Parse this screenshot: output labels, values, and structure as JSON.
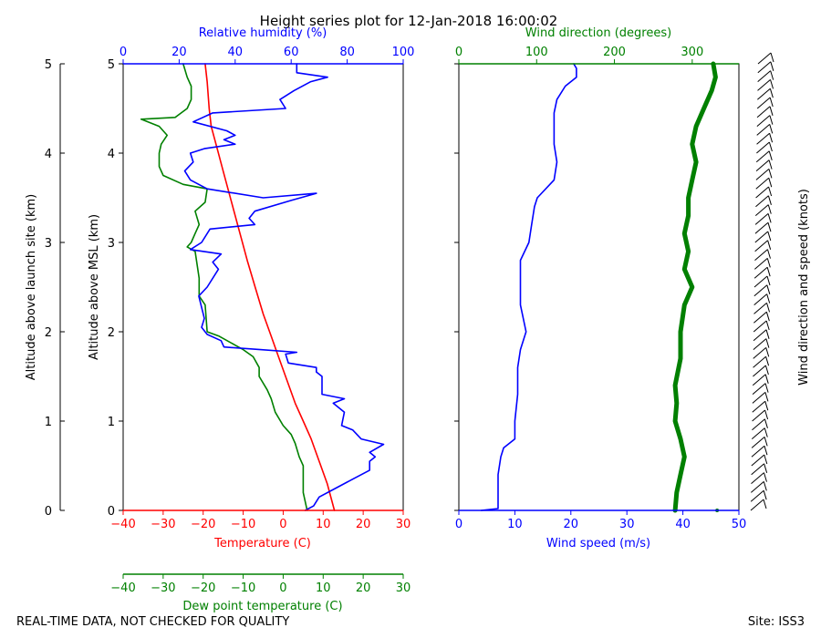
{
  "chart_data": {
    "type": "line",
    "title": "Height series plot for 12-Jan-2018 16:00:02",
    "footer_left": "REAL-TIME DATA, NOT CHECKED FOR QUALITY",
    "footer_right": "Site: ISS3",
    "colors": {
      "temperature": "#ff0000",
      "dewpoint": "#008000",
      "humidity": "#0000ff",
      "wind_speed": "#0000ff",
      "wind_direction": "#008000",
      "barbs": "#000000"
    },
    "axes": {
      "launch_alt": {
        "label": "Altitude above launch site (km)",
        "range": [
          0,
          5
        ],
        "ticks": [
          "0",
          "1",
          "2",
          "3",
          "4",
          "5"
        ]
      },
      "msl_alt": {
        "label": "Altitude above MSL (km)",
        "range": [
          0,
          5
        ],
        "ticks": [
          "0",
          "1",
          "2",
          "3",
          "4",
          "5"
        ]
      },
      "temperature": {
        "label": "Temperature (C)",
        "range": [
          -40,
          30
        ],
        "ticks": [
          "−40",
          "−30",
          "−20",
          "−10",
          "0",
          "10",
          "20",
          "30"
        ]
      },
      "dewpoint": {
        "label": "Dew point temperature (C)",
        "range": [
          -40,
          30
        ],
        "ticks": [
          "−40",
          "−30",
          "−20",
          "−10",
          "0",
          "10",
          "20",
          "30"
        ]
      },
      "humidity": {
        "label": "Relative humidity (%)",
        "range": [
          0,
          100
        ],
        "ticks": [
          "0",
          "20",
          "40",
          "60",
          "80",
          "100"
        ]
      },
      "wind_speed": {
        "label": "Wind speed (m/s)",
        "range": [
          0,
          50
        ],
        "ticks": [
          "0",
          "10",
          "20",
          "30",
          "40",
          "50"
        ]
      },
      "wind_direction": {
        "label": "Wind direction (degrees)",
        "range": [
          0,
          360
        ],
        "ticks": [
          "0",
          "100",
          "200",
          "300"
        ]
      },
      "barbs": {
        "label": "Wind direction and speed (knots)"
      }
    },
    "series": [
      {
        "name": "Temperature",
        "axis": "temperature",
        "color": "#ff0000",
        "width": 1.6,
        "points": [
          [
            12.8,
            0
          ],
          [
            11,
            0.3
          ],
          [
            9,
            0.55
          ],
          [
            7,
            0.8
          ],
          [
            5,
            1.0
          ],
          [
            3,
            1.2
          ],
          [
            1,
            1.45
          ],
          [
            -1,
            1.7
          ],
          [
            -3,
            1.95
          ],
          [
            -5,
            2.2
          ],
          [
            -7,
            2.5
          ],
          [
            -9,
            2.8
          ],
          [
            -10.5,
            3.05
          ],
          [
            -12,
            3.3
          ],
          [
            -13.5,
            3.55
          ],
          [
            -15,
            3.8
          ],
          [
            -16.5,
            4.05
          ],
          [
            -18,
            4.3
          ],
          [
            -18.5,
            4.5
          ],
          [
            -19,
            4.8
          ],
          [
            -19.5,
            5.0
          ]
        ]
      },
      {
        "name": "Dew point",
        "axis": "dewpoint",
        "color": "#008000",
        "width": 1.6,
        "points": [
          [
            6,
            0
          ],
          [
            5,
            0.2
          ],
          [
            5,
            0.5
          ],
          [
            4,
            0.6
          ],
          [
            3,
            0.75
          ],
          [
            2,
            0.85
          ],
          [
            0,
            0.95
          ],
          [
            -2,
            1.1
          ],
          [
            -3,
            1.25
          ],
          [
            -4,
            1.35
          ],
          [
            -6,
            1.5
          ],
          [
            -6,
            1.6
          ],
          [
            -7.5,
            1.72
          ],
          [
            -10,
            1.8
          ],
          [
            -12,
            1.85
          ],
          [
            -16,
            1.95
          ],
          [
            -19,
            2.0
          ],
          [
            -19.5,
            2.3
          ],
          [
            -21,
            2.4
          ],
          [
            -21,
            2.6
          ],
          [
            -22,
            2.9
          ],
          [
            -24,
            2.95
          ],
          [
            -23,
            3.0
          ],
          [
            -22,
            3.1
          ],
          [
            -21,
            3.2
          ],
          [
            -22,
            3.35
          ],
          [
            -19.5,
            3.45
          ],
          [
            -19,
            3.6
          ],
          [
            -25,
            3.65
          ],
          [
            -30,
            3.75
          ],
          [
            -31,
            3.85
          ],
          [
            -31,
            4.0
          ],
          [
            -30.5,
            4.1
          ],
          [
            -29,
            4.2
          ],
          [
            -31,
            4.3
          ],
          [
            -35.5,
            4.38
          ],
          [
            -27,
            4.4
          ],
          [
            -24,
            4.5
          ],
          [
            -23,
            4.6
          ],
          [
            -23,
            4.75
          ],
          [
            -24,
            4.85
          ],
          [
            -25,
            5.0
          ]
        ]
      },
      {
        "name": "Relative humidity",
        "axis": "humidity",
        "color": "#0000ff",
        "width": 1.6,
        "points": [
          [
            65,
            0
          ],
          [
            68,
            0.05
          ],
          [
            70,
            0.15
          ],
          [
            76,
            0.25
          ],
          [
            82,
            0.35
          ],
          [
            88,
            0.45
          ],
          [
            88,
            0.55
          ],
          [
            90,
            0.6
          ],
          [
            88,
            0.65
          ],
          [
            93,
            0.74
          ],
          [
            85,
            0.8
          ],
          [
            82,
            0.9
          ],
          [
            78,
            0.95
          ],
          [
            79,
            1.1
          ],
          [
            75,
            1.2
          ],
          [
            79,
            1.25
          ],
          [
            71,
            1.3
          ],
          [
            71,
            1.5
          ],
          [
            69,
            1.55
          ],
          [
            69,
            1.6
          ],
          [
            59,
            1.65
          ],
          [
            58,
            1.75
          ],
          [
            62,
            1.77
          ],
          [
            49,
            1.8
          ],
          [
            36,
            1.83
          ],
          [
            35,
            1.9
          ],
          [
            30,
            1.97
          ],
          [
            28,
            2.05
          ],
          [
            29,
            2.15
          ],
          [
            27,
            2.4
          ],
          [
            30,
            2.5
          ],
          [
            34,
            2.7
          ],
          [
            32,
            2.78
          ],
          [
            35,
            2.87
          ],
          [
            24,
            2.92
          ],
          [
            28,
            3.0
          ],
          [
            31,
            3.15
          ],
          [
            47,
            3.2
          ],
          [
            45,
            3.27
          ],
          [
            47,
            3.35
          ],
          [
            60,
            3.47
          ],
          [
            69,
            3.55
          ],
          [
            50,
            3.5
          ],
          [
            30,
            3.6
          ],
          [
            24,
            3.7
          ],
          [
            22,
            3.8
          ],
          [
            25,
            3.9
          ],
          [
            24,
            4.0
          ],
          [
            29,
            4.05
          ],
          [
            40,
            4.1
          ],
          [
            36,
            4.15
          ],
          [
            40,
            4.2
          ],
          [
            37,
            4.25
          ],
          [
            25,
            4.35
          ],
          [
            32,
            4.45
          ],
          [
            58,
            4.5
          ],
          [
            56,
            4.6
          ],
          [
            61,
            4.7
          ],
          [
            67,
            4.8
          ],
          [
            73,
            4.85
          ],
          [
            62,
            4.9
          ],
          [
            62,
            5.0
          ]
        ]
      },
      {
        "name": "Wind speed",
        "axis": "wind_speed",
        "color": "#0000ff",
        "width": 1.6,
        "points": [
          [
            4,
            0
          ],
          [
            7,
            0.02
          ],
          [
            7,
            0.1
          ],
          [
            7,
            0.4
          ],
          [
            7.5,
            0.6
          ],
          [
            8,
            0.7
          ],
          [
            10,
            0.8
          ],
          [
            10,
            1.0
          ],
          [
            10.5,
            1.3
          ],
          [
            10.5,
            1.6
          ],
          [
            11,
            1.8
          ],
          [
            12,
            2.0
          ],
          [
            11,
            2.3
          ],
          [
            11,
            2.6
          ],
          [
            11,
            2.8
          ],
          [
            12.5,
            3.0
          ],
          [
            13,
            3.2
          ],
          [
            13.5,
            3.4
          ],
          [
            14,
            3.5
          ],
          [
            17,
            3.7
          ],
          [
            17.5,
            3.9
          ],
          [
            17,
            4.1
          ],
          [
            17,
            4.3
          ],
          [
            17,
            4.45
          ],
          [
            17.5,
            4.6
          ],
          [
            19,
            4.75
          ],
          [
            21,
            4.85
          ],
          [
            21,
            4.95
          ],
          [
            20.5,
            5.0
          ]
        ]
      },
      {
        "name": "Wind direction",
        "axis": "wind_direction",
        "color": "#008000",
        "width": 5,
        "points": [
          [
            278,
            0
          ],
          [
            280,
            0.2
          ],
          [
            285,
            0.4
          ],
          [
            290,
            0.6
          ],
          [
            285,
            0.8
          ],
          [
            278,
            1.0
          ],
          [
            280,
            1.2
          ],
          [
            278,
            1.4
          ],
          [
            285,
            1.7
          ],
          [
            285,
            2.0
          ],
          [
            290,
            2.3
          ],
          [
            300,
            2.5
          ],
          [
            290,
            2.7
          ],
          [
            295,
            2.9
          ],
          [
            290,
            3.1
          ],
          [
            295,
            3.3
          ],
          [
            295,
            3.5
          ],
          [
            300,
            3.7
          ],
          [
            305,
            3.9
          ],
          [
            300,
            4.1
          ],
          [
            305,
            4.3
          ],
          [
            315,
            4.5
          ],
          [
            325,
            4.7
          ],
          [
            330,
            4.85
          ],
          [
            327,
            5.0
          ]
        ]
      }
    ],
    "barb_altitudes": [
      0,
      0.1,
      0.2,
      0.3,
      0.4,
      0.5,
      0.6,
      0.7,
      0.8,
      0.9,
      1.0,
      1.1,
      1.2,
      1.3,
      1.4,
      1.5,
      1.6,
      1.7,
      1.8,
      1.9,
      2.0,
      2.1,
      2.2,
      2.3,
      2.4,
      2.5,
      2.6,
      2.7,
      2.8,
      2.9,
      3.0,
      3.1,
      3.2,
      3.3,
      3.4,
      3.5,
      3.6,
      3.7,
      3.8,
      3.9,
      4.0,
      4.1,
      4.2,
      4.3,
      4.4,
      4.5,
      4.6,
      4.7,
      4.8,
      4.9,
      5.0
    ]
  }
}
